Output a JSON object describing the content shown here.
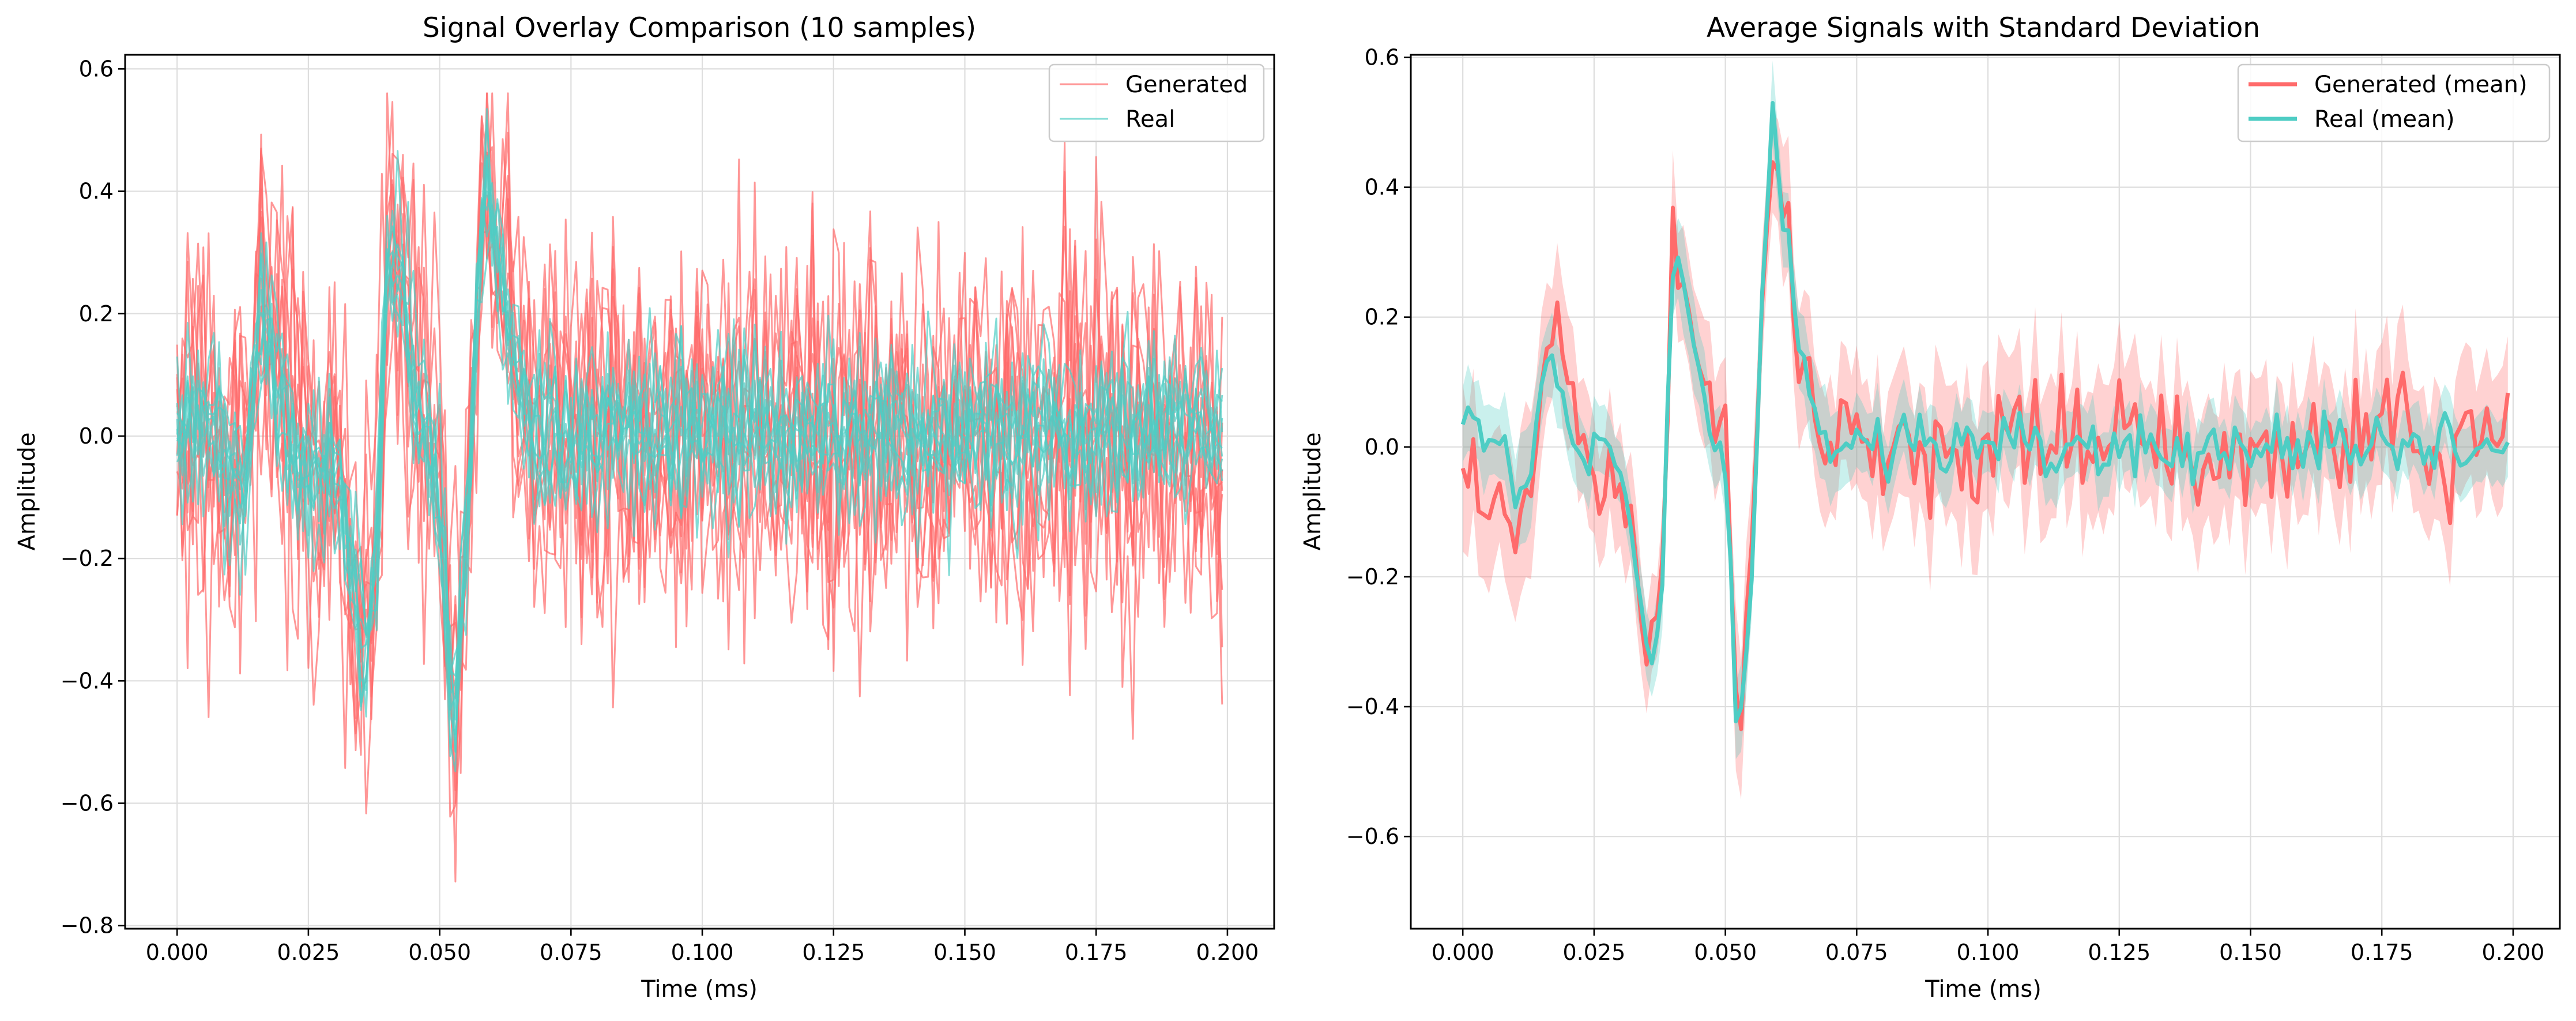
{
  "colors": {
    "generated": "#ff6b6b",
    "real": "#4ecdc4",
    "grid": "#dedede",
    "background": "#ffffff"
  },
  "chart_data": [
    {
      "type": "line",
      "title": "Signal Overlay Comparison (10 samples)",
      "xlabel": "Time (ms)",
      "ylabel": "Amplitude",
      "xlim": [
        -0.0099,
        0.2089
      ],
      "ylim": [
        -0.805,
        0.623
      ],
      "x_ticks": [
        0.0,
        0.025,
        0.05,
        0.075,
        0.1,
        0.125,
        0.15,
        0.175,
        0.2
      ],
      "x_tick_labels": [
        "0.000",
        "0.025",
        "0.050",
        "0.075",
        "0.100",
        "0.125",
        "0.150",
        "0.175",
        "0.200"
      ],
      "y_ticks": [
        -0.8,
        -0.6,
        -0.4,
        -0.2,
        0.0,
        0.2,
        0.4,
        0.6
      ],
      "y_tick_labels": [
        "−0.8",
        "−0.6",
        "−0.4",
        "−0.2",
        "0.0",
        "0.2",
        "0.4",
        "0.6"
      ],
      "grid": true,
      "legend_position": "upper right",
      "legend": [
        {
          "label": "Generated",
          "color": "#ff6b6b"
        },
        {
          "label": "Real",
          "color": "#4ecdc4"
        }
      ],
      "x": [
        0.0,
        0.00625,
        0.0125,
        0.01625,
        0.0225,
        0.0275,
        0.03125,
        0.035,
        0.0375,
        0.04,
        0.0425,
        0.0475,
        0.05,
        0.0525,
        0.055,
        0.0575,
        0.059,
        0.0615,
        0.0675,
        0.075,
        0.1,
        0.125,
        0.15,
        0.175,
        0.2
      ],
      "series": [
        {
          "name": "Generated",
          "samples": 10,
          "approx_mean": [
            0.0,
            0.0,
            -0.08,
            0.2,
            -0.05,
            -0.05,
            -0.1,
            -0.35,
            -0.3,
            0.3,
            0.25,
            0.0,
            -0.05,
            -0.45,
            -0.2,
            0.3,
            0.42,
            0.25,
            0.0,
            0.0,
            0.0,
            0.0,
            0.0,
            0.0,
            0.0
          ],
          "approx_spread": 0.15,
          "approx_min": -0.74,
          "approx_max": 0.56
        },
        {
          "name": "Real",
          "samples": 10,
          "approx_mean": [
            0.0,
            0.02,
            -0.1,
            0.2,
            -0.05,
            -0.03,
            -0.1,
            -0.35,
            -0.3,
            0.3,
            0.25,
            0.0,
            -0.1,
            -0.45,
            -0.2,
            0.3,
            0.45,
            0.25,
            0.0,
            0.0,
            0.0,
            0.0,
            0.0,
            0.0,
            0.0
          ],
          "approx_spread": 0.07,
          "approx_min": -0.55,
          "approx_max": 0.55
        }
      ]
    },
    {
      "type": "line",
      "title": "Average Signals with Standard Deviation",
      "xlabel": "Time (ms)",
      "ylabel": "Amplitude",
      "xlim": [
        -0.0099,
        0.2089
      ],
      "ylim": [
        -0.742,
        0.604
      ],
      "x_ticks": [
        0.0,
        0.025,
        0.05,
        0.075,
        0.1,
        0.125,
        0.15,
        0.175,
        0.2
      ],
      "x_tick_labels": [
        "0.000",
        "0.025",
        "0.050",
        "0.075",
        "0.100",
        "0.125",
        "0.150",
        "0.175",
        "0.200"
      ],
      "y_ticks": [
        -0.6,
        -0.4,
        -0.2,
        0.0,
        0.2,
        0.4,
        0.6
      ],
      "y_tick_labels": [
        "−0.6",
        "−0.4",
        "−0.2",
        "0.0",
        "0.2",
        "0.4",
        "0.6"
      ],
      "grid": true,
      "legend_position": "upper right",
      "legend": [
        {
          "label": "Generated (mean)",
          "color": "#ff6b6b"
        },
        {
          "label": "Real (mean)",
          "color": "#4ecdc4"
        }
      ],
      "x": [
        0.0,
        0.00625,
        0.0125,
        0.01625,
        0.0225,
        0.0275,
        0.03125,
        0.035,
        0.0375,
        0.04,
        0.0425,
        0.0475,
        0.05,
        0.0525,
        0.055,
        0.0575,
        0.059,
        0.0615,
        0.0675,
        0.075,
        0.1,
        0.125,
        0.15,
        0.175,
        0.2
      ],
      "series": [
        {
          "name": "Generated (mean)",
          "mean": [
            -0.03,
            -0.05,
            -0.1,
            0.22,
            -0.02,
            -0.05,
            -0.05,
            -0.35,
            -0.25,
            0.29,
            0.25,
            0.0,
            0.05,
            -0.47,
            -0.15,
            0.32,
            0.43,
            0.3,
            0.01,
            0.02,
            -0.01,
            0.03,
            -0.03,
            0.02,
            0.0
          ],
          "std": [
            0.12,
            0.1,
            0.12,
            0.1,
            0.09,
            0.09,
            0.09,
            0.07,
            0.07,
            0.09,
            0.09,
            0.09,
            0.08,
            0.12,
            0.1,
            0.1,
            0.08,
            0.1,
            0.1,
            0.1,
            0.11,
            0.1,
            0.1,
            0.1,
            0.1
          ]
        },
        {
          "name": "Real (mean)",
          "mean": [
            0.01,
            0.02,
            -0.1,
            0.18,
            -0.02,
            -0.01,
            -0.05,
            -0.33,
            -0.3,
            0.3,
            0.25,
            0.0,
            -0.05,
            -0.48,
            -0.2,
            0.32,
            0.48,
            0.3,
            0.0,
            0.0,
            0.0,
            0.0,
            0.0,
            0.0,
            0.0
          ],
          "std": [
            0.06,
            0.06,
            0.08,
            0.06,
            0.06,
            0.05,
            0.05,
            0.06,
            0.06,
            0.07,
            0.07,
            0.06,
            0.05,
            0.06,
            0.06,
            0.06,
            0.06,
            0.06,
            0.07,
            0.05,
            0.05,
            0.05,
            0.05,
            0.05,
            0.05
          ]
        }
      ]
    }
  ]
}
